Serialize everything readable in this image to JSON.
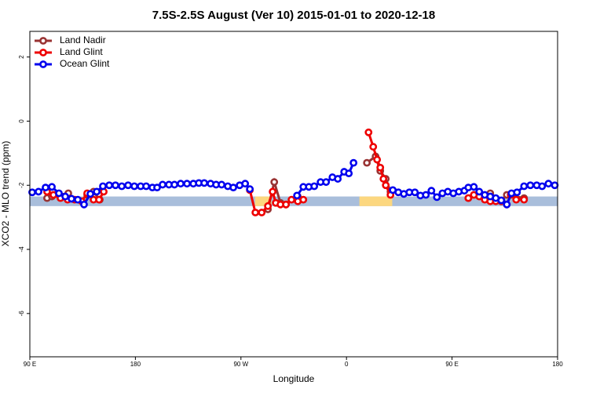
{
  "chart_data": {
    "type": "line",
    "title": "7.5S-2.5S August (Ver 10)   2015-01-01 to 2020-12-18",
    "xlabel": "Longitude",
    "ylabel": "XCO2 - MLO trend (ppm)",
    "xlim": [
      90,
      540
    ],
    "ylim": [
      -7.35,
      2.8
    ],
    "xticks": [
      {
        "value": 90,
        "label": "90 E"
      },
      {
        "value": 180,
        "label": "180"
      },
      {
        "value": 270,
        "label": "90 W"
      },
      {
        "value": 360,
        "label": "0"
      },
      {
        "value": 450,
        "label": "90 E"
      },
      {
        "value": 540,
        "label": "180"
      }
    ],
    "yticks": [
      -6,
      -4,
      -2,
      0,
      2
    ],
    "legend": "top-left",
    "band": {
      "ylim": [
        -2.65,
        -2.35
      ],
      "color": "#a9bedb",
      "highlights": [
        {
          "xlim": [
            282,
            296
          ],
          "color": "#fcd77f"
        },
        {
          "xlim": [
            371,
            399
          ],
          "color": "#fcd77f"
        }
      ]
    },
    "series": [
      {
        "name": "Land Nadir",
        "color": "#993333",
        "x": [
          104.7,
          108.8,
          114.8,
          122.8,
          null,
          138.9,
          144.3,
          149.6,
          null,
          293.0,
          298.4,
          303.7,
          308.4,
          318.5,
          null,
          377.4,
          384.8,
          388.8,
          393.5,
          397.5,
          null,
          463.9,
          482.6,
          492.0,
          496.7,
          511.4
        ],
        "values": [
          -2.4,
          -2.35,
          -2.3,
          -2.25,
          null,
          -2.3,
          -2.2,
          -2.45,
          null,
          -2.75,
          -1.9,
          -2.55,
          -2.6,
          -2.35,
          null,
          -1.3,
          -1.1,
          -1.55,
          -1.8,
          -2.2,
          null,
          -2.4,
          -2.25,
          -2.5,
          -2.3,
          -2.4
        ]
      },
      {
        "name": "Land Glint",
        "color": "#ee0000",
        "x": [
          104.7,
          110.1,
          116.1,
          122.2,
          128.2,
          134.2,
          138.9,
          144.3,
          149.0,
          153.0,
          null,
          277.6,
          282.3,
          287.7,
          293.0,
          297.0,
          299.7,
          303.7,
          308.4,
          313.1,
          318.5,
          323.2,
          null,
          378.8,
          382.8,
          386.1,
          388.8,
          391.5,
          393.5,
          397.5,
          null,
          463.9,
          468.6,
          473.2,
          477.9,
          482.6,
          487.3,
          492.0,
          496.7,
          500.0,
          504.7,
          511.4
        ],
        "values": [
          -2.2,
          -2.3,
          -2.4,
          -2.45,
          -2.45,
          -2.5,
          -2.25,
          -2.45,
          -2.45,
          -2.2,
          null,
          -2.15,
          -2.85,
          -2.85,
          -2.65,
          -2.2,
          -2.55,
          -2.6,
          -2.6,
          -2.45,
          -2.5,
          -2.45,
          null,
          -0.35,
          -0.8,
          -1.2,
          -1.45,
          -1.8,
          -2.0,
          -2.3,
          null,
          -2.4,
          -2.3,
          -2.35,
          -2.45,
          -2.5,
          -2.5,
          -2.5,
          -2.6,
          -2.3,
          -2.45,
          -2.45
        ]
      },
      {
        "name": "Ocean Glint",
        "color": "#0000ee",
        "x": [
          92.0,
          97.4,
          103.4,
          108.8,
          114.8,
          120.2,
          125.5,
          130.9,
          136.2,
          141.6,
          147.0,
          152.3,
          157.7,
          163.0,
          168.4,
          173.8,
          179.1,
          184.5,
          189.2,
          194.5,
          198.5,
          203.2,
          208.6,
          213.3,
          218.6,
          224.0,
          229.4,
          234.1,
          238.7,
          244.1,
          248.8,
          253.5,
          258.8,
          263.5,
          268.9,
          273.6,
          277.6,
          null,
          317.8,
          323.2,
          327.9,
          332.5,
          337.9,
          342.6,
          348.0,
          352.6,
          358.0,
          362.0,
          366.0,
          null,
          399.5,
          404.2,
          408.9,
          413.6,
          418.3,
          423.0,
          427.7,
          432.4,
          437.1,
          441.8,
          446.4,
          451.1,
          455.8,
          460.5,
          463.9,
          468.6,
          473.2,
          477.9,
          482.6,
          487.3,
          492.0,
          496.7,
          500.7,
          505.4,
          511.4,
          516.8,
          522.2,
          526.8,
          532.2,
          537.6
        ],
        "values": [
          -2.22,
          -2.2,
          -2.07,
          -2.05,
          -2.25,
          -2.35,
          -2.42,
          -2.45,
          -2.6,
          -2.27,
          -2.2,
          -2.03,
          -2.0,
          -2.0,
          -2.03,
          -2.0,
          -2.03,
          -2.03,
          -2.03,
          -2.07,
          -2.07,
          -1.98,
          -1.98,
          -1.98,
          -1.95,
          -1.95,
          -1.95,
          -1.93,
          -1.93,
          -1.95,
          -1.98,
          -1.98,
          -2.03,
          -2.07,
          -2.0,
          -1.95,
          -2.12,
          null,
          -2.32,
          -2.05,
          -2.05,
          -2.03,
          -1.9,
          -1.9,
          -1.75,
          -1.8,
          -1.58,
          -1.63,
          -1.3,
          null,
          -2.15,
          -2.22,
          -2.27,
          -2.22,
          -2.22,
          -2.32,
          -2.3,
          -2.17,
          -2.37,
          -2.25,
          -2.2,
          -2.25,
          -2.2,
          -2.17,
          -2.07,
          -2.05,
          -2.2,
          -2.3,
          -2.35,
          -2.4,
          -2.47,
          -2.6,
          -2.25,
          -2.22,
          -2.03,
          -2.0,
          -2.0,
          -2.03,
          -1.95,
          -2.0
        ]
      }
    ]
  }
}
